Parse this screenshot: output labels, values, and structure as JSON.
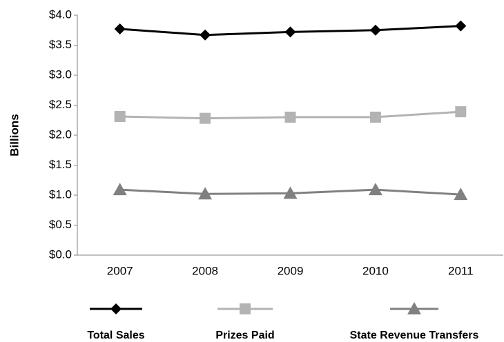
{
  "chart_data": {
    "type": "line",
    "y_label": "Billions",
    "categories": [
      "2007",
      "2008",
      "2009",
      "2010",
      "2011"
    ],
    "series": [
      {
        "name": "Total Sales",
        "color": "#000000",
        "marker": "diamond",
        "values": [
          3.77,
          3.67,
          3.72,
          3.75,
          3.82
        ]
      },
      {
        "name": "Prizes Paid",
        "color": "#b3b3b3",
        "marker": "square",
        "values": [
          2.31,
          2.28,
          2.3,
          2.3,
          2.39
        ]
      },
      {
        "name": "State Revenue Transfers",
        "color": "#808080",
        "marker": "triangle",
        "values": [
          1.09,
          1.02,
          1.03,
          1.09,
          1.01
        ]
      }
    ],
    "ylim": [
      0,
      4
    ],
    "yticks": [
      {
        "value": 0,
        "label": "$0.0"
      },
      {
        "value": 0.5,
        "label": "$0.5"
      },
      {
        "value": 1,
        "label": "$1.0"
      },
      {
        "value": 1.5,
        "label": "$1.5"
      },
      {
        "value": 2,
        "label": "$2.0"
      },
      {
        "value": 2.5,
        "label": "$2.5"
      },
      {
        "value": 3,
        "label": "$3.0"
      },
      {
        "value": 3.5,
        "label": "$3.5"
      },
      {
        "value": 4,
        "label": "$4.0"
      }
    ],
    "grid": false,
    "legend": "bottom"
  }
}
